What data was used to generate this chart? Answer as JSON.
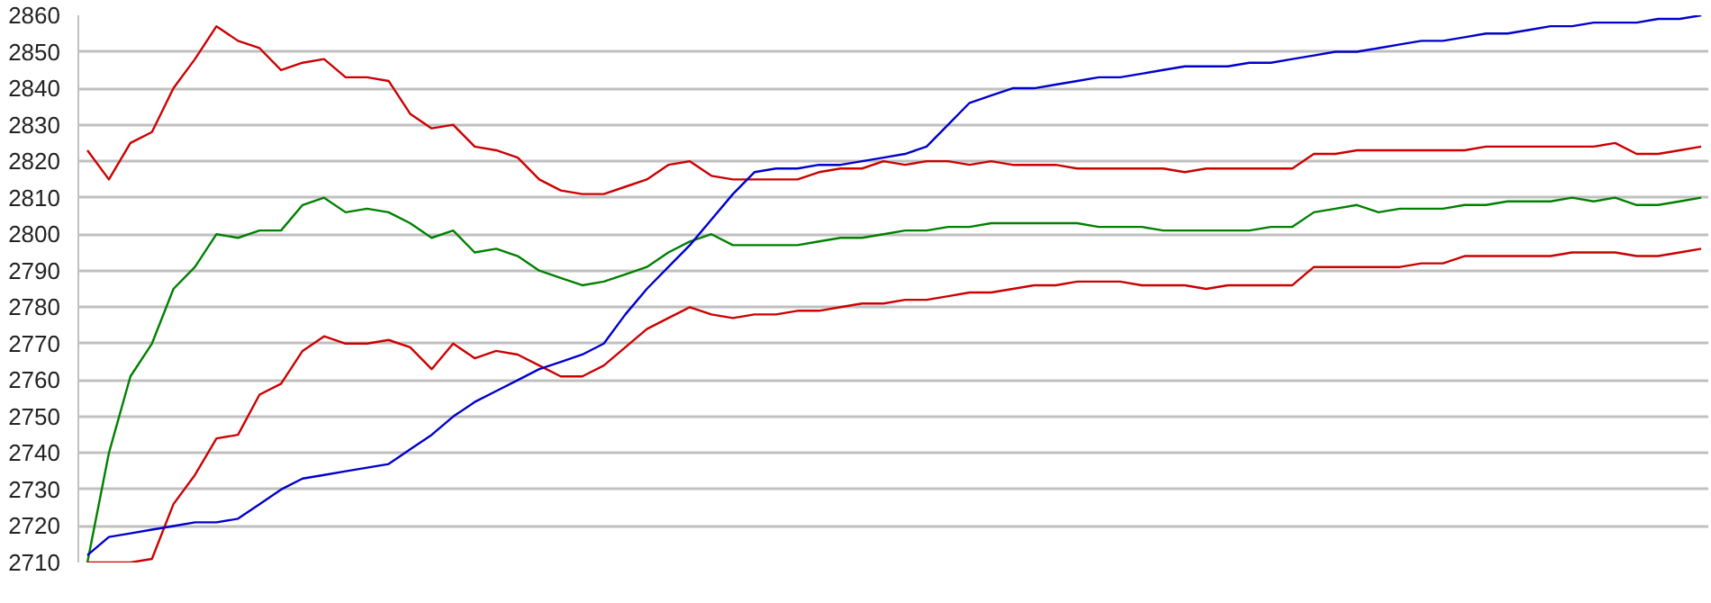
{
  "chart_data": {
    "type": "line",
    "categories": [
      null,
      null,
      null,
      null,
      null,
      null,
      null,
      null,
      null,
      null,
      null,
      null,
      null,
      null,
      null,
      null,
      null,
      null,
      null,
      null,
      null,
      null,
      null,
      null,
      null,
      null,
      null,
      null,
      null,
      null,
      null,
      null,
      null,
      null,
      null,
      null,
      null,
      null,
      null,
      null,
      null,
      null,
      null,
      null,
      null,
      null,
      null,
      null,
      null,
      null,
      null,
      null,
      null,
      null,
      null,
      null,
      null,
      null,
      null,
      null,
      null,
      null,
      null,
      null,
      null,
      null,
      null,
      null,
      null,
      null,
      null,
      null,
      null,
      null,
      null,
      null
    ],
    "series": [
      {
        "color": "#cc0000",
        "values": [
          2823,
          2815,
          2825,
          2828,
          2840,
          2848,
          2857,
          2853,
          2851,
          2845,
          2847,
          2848,
          2843,
          2843,
          2842,
          2833,
          2829,
          2830,
          2824,
          2823,
          2821,
          2815,
          2812,
          2811,
          2811,
          2813,
          2815,
          2819,
          2820,
          2816,
          2815,
          2815,
          2815,
          2815,
          2817,
          2818,
          2818,
          2820,
          2819,
          2820,
          2820,
          2819,
          2820,
          2819,
          2819,
          2819,
          2818,
          2818,
          2818,
          2818,
          2818,
          2817,
          2818,
          2818,
          2818,
          2818,
          2818,
          2822,
          2822,
          2823,
          2823,
          2823,
          2823,
          2823,
          2823,
          2824,
          2824,
          2824,
          2824,
          2824,
          2824,
          2825,
          2822,
          2822,
          2823,
          2824
        ]
      },
      {
        "color": "#008000",
        "values": [
          2710,
          2740,
          2761,
          2770,
          2785,
          2791,
          2800,
          2799,
          2801,
          2801,
          2808,
          2810,
          2806,
          2807,
          2806,
          2803,
          2799,
          2801,
          2795,
          2796,
          2794,
          2790,
          2788,
          2786,
          2787,
          2789,
          2791,
          2795,
          2798,
          2800,
          2797,
          2797,
          2797,
          2797,
          2798,
          2799,
          2799,
          2800,
          2801,
          2801,
          2802,
          2802,
          2803,
          2803,
          2803,
          2803,
          2803,
          2802,
          2802,
          2802,
          2801,
          2801,
          2801,
          2801,
          2801,
          2802,
          2802,
          2806,
          2807,
          2808,
          2806,
          2807,
          2807,
          2807,
          2808,
          2808,
          2809,
          2809,
          2809,
          2810,
          2809,
          2810,
          2808,
          2808,
          2809,
          2810
        ]
      },
      {
        "color": "#cc0000",
        "values": [
          2710,
          2710,
          2710,
          2711,
          2726,
          2734,
          2744,
          2745,
          2756,
          2759,
          2768,
          2772,
          2770,
          2770,
          2771,
          2769,
          2763,
          2770,
          2766,
          2768,
          2767,
          2764,
          2761,
          2761,
          2764,
          2769,
          2774,
          2777,
          2780,
          2778,
          2777,
          2778,
          2778,
          2779,
          2779,
          2780,
          2781,
          2781,
          2782,
          2782,
          2783,
          2784,
          2784,
          2785,
          2786,
          2786,
          2787,
          2787,
          2787,
          2786,
          2786,
          2786,
          2785,
          2786,
          2786,
          2786,
          2786,
          2791,
          2791,
          2791,
          2791,
          2791,
          2792,
          2792,
          2794,
          2794,
          2794,
          2794,
          2794,
          2795,
          2795,
          2795,
          2794,
          2794,
          2795,
          2796
        ]
      },
      {
        "color": "#0000cc",
        "values": [
          2712,
          2717,
          2718,
          2719,
          2720,
          2721,
          2721,
          2722,
          2726,
          2730,
          2733,
          2734,
          2735,
          2736,
          2737,
          2741,
          2745,
          2750,
          2754,
          2757,
          2760,
          2763,
          2765,
          2767,
          2770,
          2778,
          2785,
          2791,
          2797,
          2804,
          2811,
          2817,
          2818,
          2818,
          2819,
          2819,
          2820,
          2821,
          2822,
          2824,
          2830,
          2836,
          2838,
          2840,
          2840,
          2841,
          2842,
          2843,
          2843,
          2844,
          2845,
          2846,
          2846,
          2846,
          2847,
          2847,
          2848,
          2849,
          2850,
          2850,
          2851,
          2852,
          2853,
          2853,
          2854,
          2855,
          2855,
          2856,
          2857,
          2857,
          2858,
          2858,
          2858,
          2859,
          2859,
          2860
        ]
      }
    ],
    "ylim": [
      2710,
      2860
    ],
    "yticks": [
      2710,
      2720,
      2730,
      2740,
      2750,
      2760,
      2770,
      2780,
      2790,
      2800,
      2810,
      2820,
      2830,
      2840,
      2850,
      2860
    ],
    "grid": "y",
    "tick_labels": "y"
  }
}
